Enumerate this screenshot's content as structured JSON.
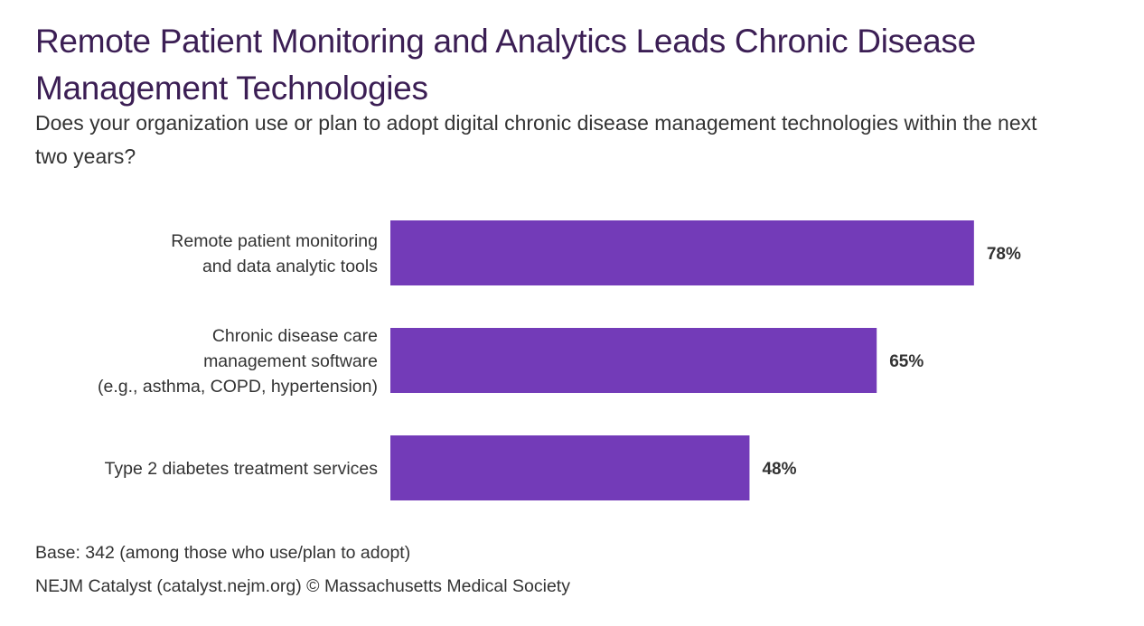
{
  "header": {
    "title": "Remote Patient Monitoring and Analytics Leads Chronic Disease Management Technologies",
    "subtitle": "Does your organization use or plan to adopt digital chronic disease management technologies within the next two years?"
  },
  "footer": {
    "base": "Base: 342 (among those who use/plan to adopt)",
    "source": "NEJM Catalyst (catalyst.nejm.org) © Massachusetts Medical Society"
  },
  "colors": {
    "bar": "#733bb8",
    "title": "#3b1e54",
    "text": "#333333"
  },
  "chart_data": {
    "type": "bar",
    "orientation": "horizontal",
    "title": "Remote Patient Monitoring and Analytics Leads Chronic Disease Management Technologies",
    "subtitle": "Does your organization use or plan to adopt digital chronic disease management technologies within the next two years?",
    "xlabel": "",
    "ylabel": "",
    "categories": [
      [
        "Remote patient monitoring",
        "and data analytic tools"
      ],
      [
        "Chronic disease care",
        "management software",
        "(e.g., asthma, COPD, hypertension)"
      ],
      [
        "Type 2 diabetes treatment services"
      ]
    ],
    "values": [
      78,
      65,
      48
    ],
    "value_labels": [
      "78%",
      "65%",
      "48%"
    ],
    "unit": "%",
    "xlim": [
      0,
      100
    ],
    "grid": false,
    "legend": "none"
  }
}
